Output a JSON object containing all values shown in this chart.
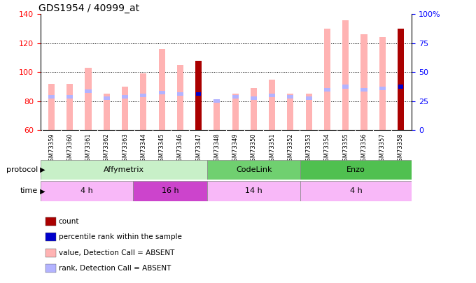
{
  "title": "GDS1954 / 40999_at",
  "samples": [
    "GSM73359",
    "GSM73360",
    "GSM73361",
    "GSM73362",
    "GSM73363",
    "GSM73344",
    "GSM73345",
    "GSM73346",
    "GSM73347",
    "GSM73348",
    "GSM73349",
    "GSM73350",
    "GSM73351",
    "GSM73352",
    "GSM73353",
    "GSM73354",
    "GSM73355",
    "GSM73356",
    "GSM73357",
    "GSM73358"
  ],
  "value_absent": [
    92,
    92,
    103,
    85,
    90,
    99,
    116,
    105,
    null,
    79,
    85,
    89,
    95,
    85,
    85,
    130,
    136,
    126,
    124,
    130
  ],
  "rank_absent": [
    83,
    83,
    87,
    82,
    83,
    84,
    86,
    85,
    null,
    80,
    83,
    82,
    84,
    83,
    82,
    88,
    90,
    88,
    89,
    null
  ],
  "count_value": [
    null,
    null,
    null,
    null,
    null,
    null,
    null,
    null,
    108,
    null,
    null,
    null,
    null,
    null,
    null,
    null,
    null,
    null,
    null,
    130
  ],
  "count_rank": [
    null,
    null,
    null,
    null,
    null,
    null,
    null,
    null,
    85,
    null,
    null,
    null,
    null,
    null,
    null,
    null,
    null,
    null,
    null,
    90
  ],
  "ylim": [
    60,
    140
  ],
  "yticks_left": [
    60,
    80,
    100,
    120,
    140
  ],
  "yticks_right_vals": [
    60,
    80,
    100,
    120,
    140
  ],
  "yticks_right_labels": [
    "0",
    "25",
    "50",
    "75",
    "100%"
  ],
  "protocol_groups": [
    {
      "label": "Affymetrix",
      "start": 0,
      "end": 9,
      "color": "#C8F0C8"
    },
    {
      "label": "CodeLink",
      "start": 9,
      "end": 14,
      "color": "#70D070"
    },
    {
      "label": "Enzo",
      "start": 14,
      "end": 20,
      "color": "#50C050"
    }
  ],
  "time_groups": [
    {
      "label": "4 h",
      "start": 0,
      "end": 5,
      "color": "#F8B8F8"
    },
    {
      "label": "16 h",
      "start": 5,
      "end": 9,
      "color": "#CC44CC"
    },
    {
      "label": "14 h",
      "start": 9,
      "end": 14,
      "color": "#F8B8F8"
    },
    {
      "label": "4 h",
      "start": 14,
      "end": 20,
      "color": "#F8B8F8"
    }
  ],
  "color_value_absent": "#FFB3B3",
  "color_rank_absent": "#B3B3FF",
  "color_count": "#AA0000",
  "color_percentile": "#0000CC",
  "bar_width": 0.35,
  "legend_items": [
    {
      "color": "#AA0000",
      "label": "count"
    },
    {
      "color": "#0000CC",
      "label": "percentile rank within the sample"
    },
    {
      "color": "#FFB3B3",
      "label": "value, Detection Call = ABSENT"
    },
    {
      "color": "#B3B3FF",
      "label": "rank, Detection Call = ABSENT"
    }
  ],
  "xticklabels_bg": "#DDDDDD"
}
